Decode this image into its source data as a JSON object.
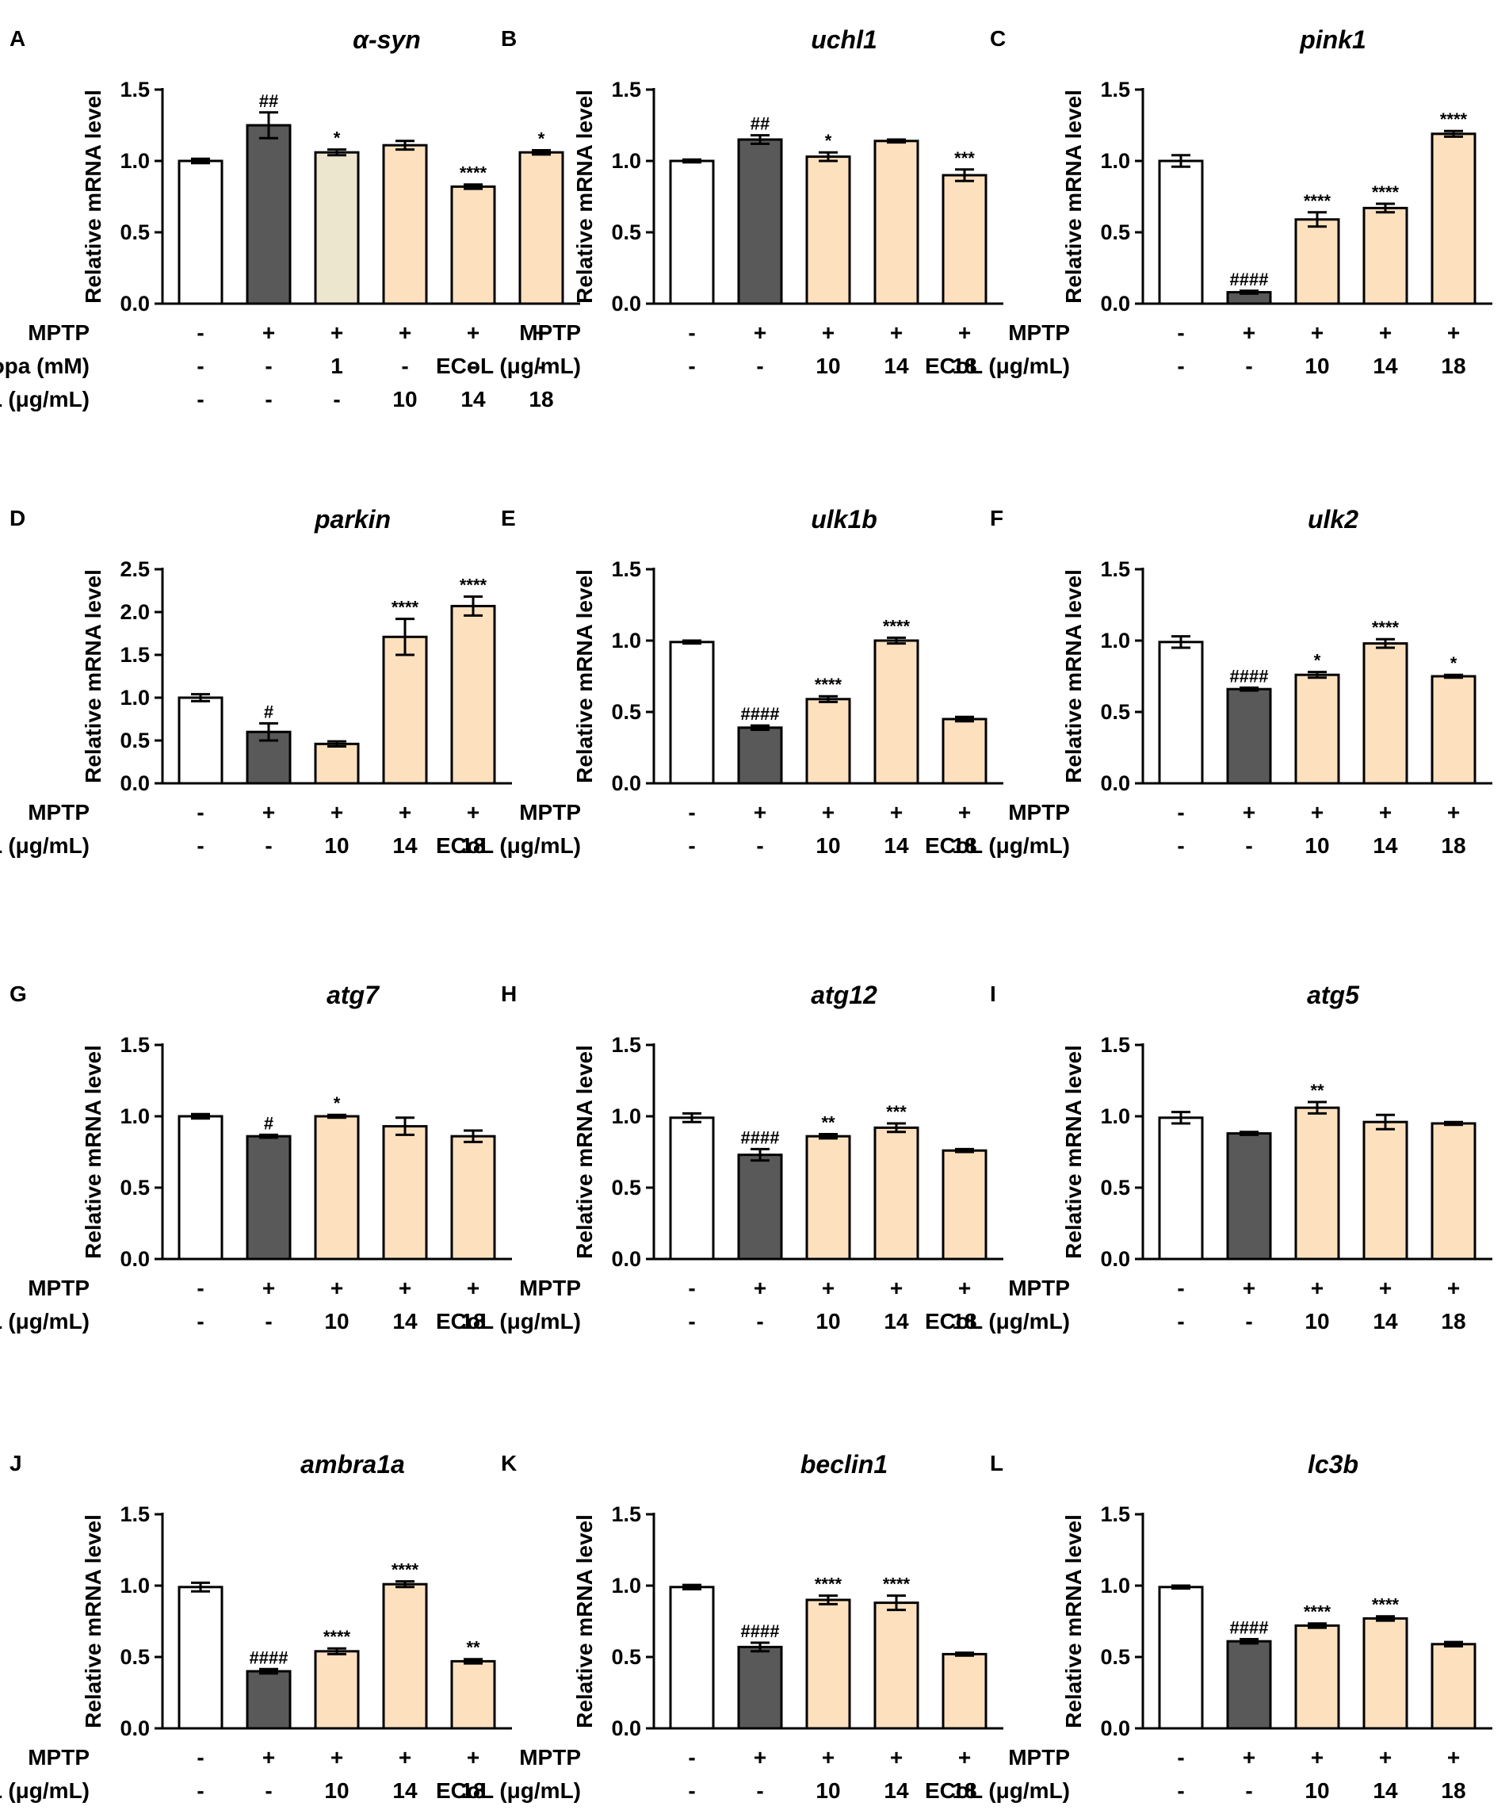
{
  "colors": {
    "control": "#ffffff",
    "mptp": "#595959",
    "ldopa": "#ece6ce",
    "ecol": "#fde1bf",
    "axis": "#000000"
  },
  "chart_data": [
    {
      "id": "A",
      "title": "α-syn",
      "type": "bar",
      "ylabel": "Relative mRNA level",
      "ylim": [
        0,
        1.5
      ],
      "yticks": [
        "0.0",
        "0.5",
        "1.0",
        "1.5"
      ],
      "values": [
        1.0,
        1.25,
        1.06,
        1.11,
        0.82,
        1.06
      ],
      "errors": [
        0.015,
        0.09,
        0.02,
        0.03,
        0.015,
        0.015
      ],
      "groups": [
        "control",
        "mptp",
        "ldopa",
        "ecol",
        "ecol",
        "ecol"
      ],
      "annotations": [
        "",
        "##",
        "*",
        "",
        "****",
        "*"
      ],
      "rows": [
        {
          "label": "MPTP",
          "values": [
            "-",
            "+",
            "+",
            "+",
            "+",
            "+"
          ]
        },
        {
          "label": "L-dopa (mM)",
          "values": [
            "-",
            "-",
            "1",
            "-",
            "-",
            "-"
          ]
        },
        {
          "label": "ECoL (μg/mL)",
          "values": [
            "-",
            "-",
            "-",
            "10",
            "14",
            "18"
          ]
        }
      ]
    },
    {
      "id": "B",
      "title": "uchl1",
      "type": "bar",
      "ylabel": "Relative mRNA level",
      "ylim": [
        0,
        1.5
      ],
      "yticks": [
        "0.0",
        "0.5",
        "1.0",
        "1.5"
      ],
      "values": [
        1.0,
        1.15,
        1.03,
        1.14,
        0.9
      ],
      "errors": [
        0.01,
        0.03,
        0.03,
        0.01,
        0.04
      ],
      "groups": [
        "control",
        "mptp",
        "ecol",
        "ecol",
        "ecol"
      ],
      "annotations": [
        "",
        "##",
        "*",
        "",
        "***"
      ],
      "rows": [
        {
          "label": "MPTP",
          "values": [
            "-",
            "+",
            "+",
            "+",
            "+"
          ]
        },
        {
          "label": "ECoL (μg/mL)",
          "values": [
            "-",
            "-",
            "10",
            "14",
            "18"
          ]
        }
      ]
    },
    {
      "id": "C",
      "title": "pink1",
      "type": "bar",
      "ylabel": "Relative mRNA level",
      "ylim": [
        0,
        1.5
      ],
      "yticks": [
        "0.0",
        "0.5",
        "1.0",
        "1.5"
      ],
      "values": [
        1.0,
        0.08,
        0.59,
        0.67,
        1.19
      ],
      "errors": [
        0.04,
        0.01,
        0.05,
        0.03,
        0.02
      ],
      "groups": [
        "control",
        "mptp",
        "ecol",
        "ecol",
        "ecol"
      ],
      "annotations": [
        "",
        "####",
        "****",
        "****",
        "****"
      ],
      "rows": [
        {
          "label": "MPTP",
          "values": [
            "-",
            "+",
            "+",
            "+",
            "+"
          ]
        },
        {
          "label": "ECoL (μg/mL)",
          "values": [
            "-",
            "-",
            "10",
            "14",
            "18"
          ]
        }
      ]
    },
    {
      "id": "D",
      "title": "parkin",
      "type": "bar",
      "ylabel": "Relative mRNA level",
      "ylim": [
        0,
        2.5
      ],
      "yticks": [
        "0.0",
        "0.5",
        "1.0",
        "1.5",
        "2.0",
        "2.5"
      ],
      "values": [
        1.0,
        0.6,
        0.46,
        1.71,
        2.07
      ],
      "errors": [
        0.04,
        0.1,
        0.03,
        0.21,
        0.11
      ],
      "groups": [
        "control",
        "mptp",
        "ecol",
        "ecol",
        "ecol"
      ],
      "annotations": [
        "",
        "#",
        "",
        "****",
        "****"
      ],
      "rows": [
        {
          "label": "MPTP",
          "values": [
            "-",
            "+",
            "+",
            "+",
            "+"
          ]
        },
        {
          "label": "ECoL (μg/mL)",
          "values": [
            "-",
            "-",
            "10",
            "14",
            "18"
          ]
        }
      ]
    },
    {
      "id": "E",
      "title": "ulk1b",
      "type": "bar",
      "ylabel": "Relative mRNA level",
      "ylim": [
        0,
        1.5
      ],
      "yticks": [
        "0.0",
        "0.5",
        "1.0",
        "1.5"
      ],
      "values": [
        0.99,
        0.39,
        0.59,
        1.0,
        0.45
      ],
      "errors": [
        0.01,
        0.015,
        0.02,
        0.02,
        0.015
      ],
      "groups": [
        "control",
        "mptp",
        "ecol",
        "ecol",
        "ecol"
      ],
      "annotations": [
        "",
        "####",
        "****",
        "****",
        ""
      ],
      "rows": [
        {
          "label": "MPTP",
          "values": [
            "-",
            "+",
            "+",
            "+",
            "+"
          ]
        },
        {
          "label": "ECoL (μg/mL)",
          "values": [
            "-",
            "-",
            "10",
            "14",
            "18"
          ]
        }
      ]
    },
    {
      "id": "F",
      "title": "ulk2",
      "type": "bar",
      "ylabel": "Relative mRNA level",
      "ylim": [
        0,
        1.5
      ],
      "yticks": [
        "0.0",
        "0.5",
        "1.0",
        "1.5"
      ],
      "values": [
        0.99,
        0.66,
        0.76,
        0.98,
        0.75
      ],
      "errors": [
        0.04,
        0.01,
        0.02,
        0.03,
        0.01
      ],
      "groups": [
        "control",
        "mptp",
        "ecol",
        "ecol",
        "ecol"
      ],
      "annotations": [
        "",
        "####",
        "*",
        "****",
        "*"
      ],
      "rows": [
        {
          "label": "MPTP",
          "values": [
            "-",
            "+",
            "+",
            "+",
            "+"
          ]
        },
        {
          "label": "ECoL (μg/mL)",
          "values": [
            "-",
            "-",
            "10",
            "14",
            "18"
          ]
        }
      ]
    },
    {
      "id": "G",
      "title": "atg7",
      "type": "bar",
      "ylabel": "Relative mRNA level",
      "ylim": [
        0,
        1.5
      ],
      "yticks": [
        "0.0",
        "0.5",
        "1.0",
        "1.5"
      ],
      "values": [
        1.0,
        0.86,
        1.0,
        0.93,
        0.86
      ],
      "errors": [
        0.015,
        0.01,
        0.01,
        0.06,
        0.04
      ],
      "groups": [
        "control",
        "mptp",
        "ecol",
        "ecol",
        "ecol"
      ],
      "annotations": [
        "",
        "#",
        "*",
        "",
        ""
      ],
      "rows": [
        {
          "label": "MPTP",
          "values": [
            "-",
            "+",
            "+",
            "+",
            "+"
          ]
        },
        {
          "label": "ECoL (μg/mL)",
          "values": [
            "-",
            "-",
            "10",
            "14",
            "18"
          ]
        }
      ]
    },
    {
      "id": "H",
      "title": "atg12",
      "type": "bar",
      "ylabel": "Relative mRNA level",
      "ylim": [
        0,
        1.5
      ],
      "yticks": [
        "0.0",
        "0.5",
        "1.0",
        "1.5"
      ],
      "values": [
        0.99,
        0.73,
        0.86,
        0.92,
        0.76
      ],
      "errors": [
        0.03,
        0.04,
        0.015,
        0.03,
        0.01
      ],
      "groups": [
        "control",
        "mptp",
        "ecol",
        "ecol",
        "ecol"
      ],
      "annotations": [
        "",
        "####",
        "**",
        "***",
        ""
      ],
      "rows": [
        {
          "label": "MPTP",
          "values": [
            "-",
            "+",
            "+",
            "+",
            "+"
          ]
        },
        {
          "label": "ECoL (μg/mL)",
          "values": [
            "-",
            "-",
            "10",
            "14",
            "18"
          ]
        }
      ]
    },
    {
      "id": "I",
      "title": "atg5",
      "type": "bar",
      "ylabel": "Relative mRNA level",
      "ylim": [
        0,
        1.5
      ],
      "yticks": [
        "0.0",
        "0.5",
        "1.0",
        "1.5"
      ],
      "values": [
        0.99,
        0.88,
        1.06,
        0.96,
        0.95
      ],
      "errors": [
        0.04,
        0.01,
        0.04,
        0.05,
        0.01
      ],
      "groups": [
        "control",
        "mptp",
        "ecol",
        "ecol",
        "ecol"
      ],
      "annotations": [
        "",
        "",
        "**",
        "",
        ""
      ],
      "rows": [
        {
          "label": "MPTP",
          "values": [
            "-",
            "+",
            "+",
            "+",
            "+"
          ]
        },
        {
          "label": "ECoL (μg/mL)",
          "values": [
            "-",
            "-",
            "10",
            "14",
            "18"
          ]
        }
      ]
    },
    {
      "id": "J",
      "title": "ambra1a",
      "type": "bar",
      "ylabel": "Relative mRNA level",
      "ylim": [
        0,
        1.5
      ],
      "yticks": [
        "0.0",
        "0.5",
        "1.0",
        "1.5"
      ],
      "values": [
        0.99,
        0.4,
        0.54,
        1.01,
        0.47
      ],
      "errors": [
        0.03,
        0.015,
        0.02,
        0.02,
        0.015
      ],
      "groups": [
        "control",
        "mptp",
        "ecol",
        "ecol",
        "ecol"
      ],
      "annotations": [
        "",
        "####",
        "****",
        "****",
        "**"
      ],
      "rows": [
        {
          "label": "MPTP",
          "values": [
            "-",
            "+",
            "+",
            "+",
            "+"
          ]
        },
        {
          "label": "ECoL (μg/mL)",
          "values": [
            "-",
            "-",
            "10",
            "14",
            "18"
          ]
        }
      ]
    },
    {
      "id": "K",
      "title": "beclin1",
      "type": "bar",
      "ylabel": "Relative mRNA level",
      "ylim": [
        0,
        1.5
      ],
      "yticks": [
        "0.0",
        "0.5",
        "1.0",
        "1.5"
      ],
      "values": [
        0.99,
        0.57,
        0.9,
        0.88,
        0.52
      ],
      "errors": [
        0.015,
        0.03,
        0.03,
        0.05,
        0.01
      ],
      "groups": [
        "control",
        "mptp",
        "ecol",
        "ecol",
        "ecol"
      ],
      "annotations": [
        "",
        "####",
        "****",
        "****",
        ""
      ],
      "rows": [
        {
          "label": "MPTP",
          "values": [
            "-",
            "+",
            "+",
            "+",
            "+"
          ]
        },
        {
          "label": "ECoL (μg/mL)",
          "values": [
            "-",
            "-",
            "10",
            "14",
            "18"
          ]
        }
      ]
    },
    {
      "id": "L",
      "title": "lc3b",
      "type": "bar",
      "ylabel": "Relative mRNA level",
      "ylim": [
        0,
        1.5
      ],
      "yticks": [
        "0.0",
        "0.5",
        "1.0",
        "1.5"
      ],
      "values": [
        0.99,
        0.61,
        0.72,
        0.77,
        0.59
      ],
      "errors": [
        0.01,
        0.015,
        0.015,
        0.015,
        0.015
      ],
      "groups": [
        "control",
        "mptp",
        "ecol",
        "ecol",
        "ecol"
      ],
      "annotations": [
        "",
        "####",
        "****",
        "****",
        ""
      ],
      "rows": [
        {
          "label": "MPTP",
          "values": [
            "-",
            "+",
            "+",
            "+",
            "+"
          ]
        },
        {
          "label": "ECoL (μg/mL)",
          "values": [
            "-",
            "-",
            "10",
            "14",
            "18"
          ]
        }
      ]
    }
  ]
}
